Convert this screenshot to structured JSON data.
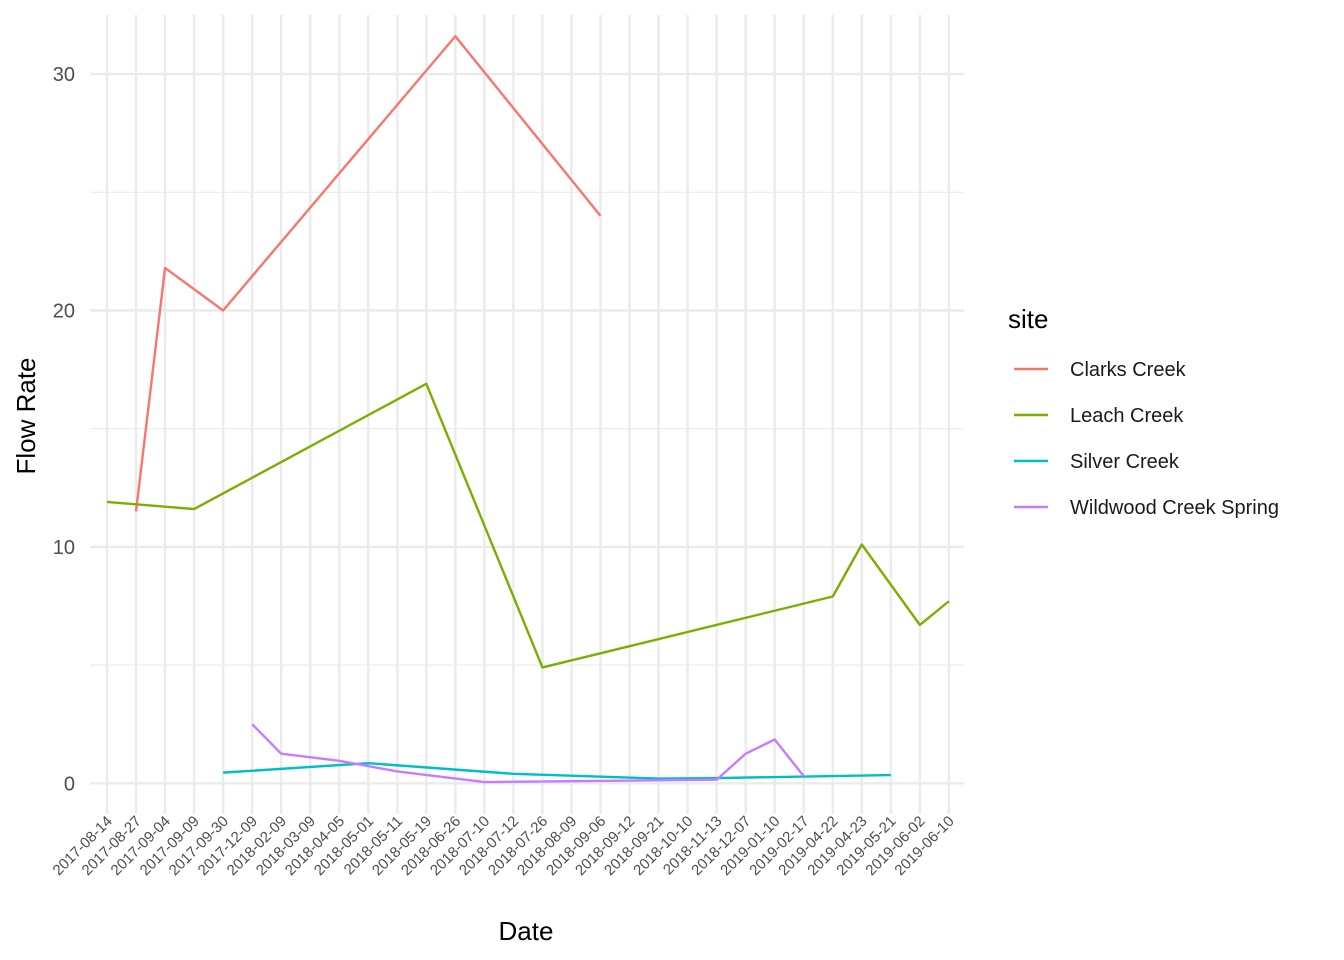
{
  "chart_data": {
    "type": "line",
    "title": "",
    "xlabel": "Date",
    "ylabel": "Flow Rate",
    "ylim": [
      -1.3,
      32.5
    ],
    "yticks": [
      0,
      10,
      20,
      30
    ],
    "grid": true,
    "legend_position": "right",
    "legend_title": "site",
    "categories": [
      "2017-08-14",
      "2017-08-27",
      "2017-09-04",
      "2017-09-09",
      "2017-09-30",
      "2017-12-09",
      "2018-02-09",
      "2018-03-09",
      "2018-04-05",
      "2018-05-01",
      "2018-05-11",
      "2018-05-19",
      "2018-06-26",
      "2018-07-10",
      "2018-07-12",
      "2018-07-26",
      "2018-08-09",
      "2018-09-06",
      "2018-09-12",
      "2018-09-21",
      "2018-10-10",
      "2018-11-13",
      "2018-12-07",
      "2019-01-10",
      "2019-02-17",
      "2019-04-22",
      "2019-04-23",
      "2019-05-21",
      "2019-06-02",
      "2019-06-10"
    ],
    "series": [
      {
        "name": "Clarks Creek",
        "color": "#F8766D",
        "values": [
          null,
          11.5,
          21.8,
          null,
          20.0,
          null,
          null,
          null,
          null,
          null,
          null,
          null,
          31.6,
          null,
          null,
          null,
          null,
          24.0,
          null,
          null,
          null,
          null,
          null,
          null,
          null,
          null,
          null,
          null,
          null,
          null
        ]
      },
      {
        "name": "Leach Creek",
        "color": "#7CAE00",
        "values": [
          11.9,
          null,
          null,
          11.6,
          null,
          null,
          null,
          null,
          null,
          null,
          null,
          16.9,
          null,
          null,
          null,
          4.9,
          null,
          null,
          null,
          null,
          null,
          null,
          null,
          null,
          null,
          7.9,
          10.1,
          null,
          6.7,
          7.7
        ]
      },
      {
        "name": "Silver Creek",
        "color": "#00BFC4",
        "values": [
          null,
          null,
          null,
          null,
          0.45,
          null,
          null,
          null,
          null,
          0.85,
          null,
          null,
          null,
          null,
          0.4,
          null,
          null,
          null,
          null,
          0.2,
          null,
          0.22,
          null,
          null,
          null,
          null,
          null,
          0.35,
          null,
          null
        ]
      },
      {
        "name": "Wildwood Creek Spring",
        "color": "#C77CFF",
        "values": [
          null,
          null,
          null,
          null,
          null,
          2.5,
          1.25,
          null,
          0.95,
          null,
          0.5,
          null,
          null,
          0.05,
          null,
          null,
          null,
          null,
          null,
          null,
          null,
          0.15,
          1.25,
          1.85,
          0.3,
          null,
          null,
          null,
          null,
          null
        ]
      }
    ]
  }
}
